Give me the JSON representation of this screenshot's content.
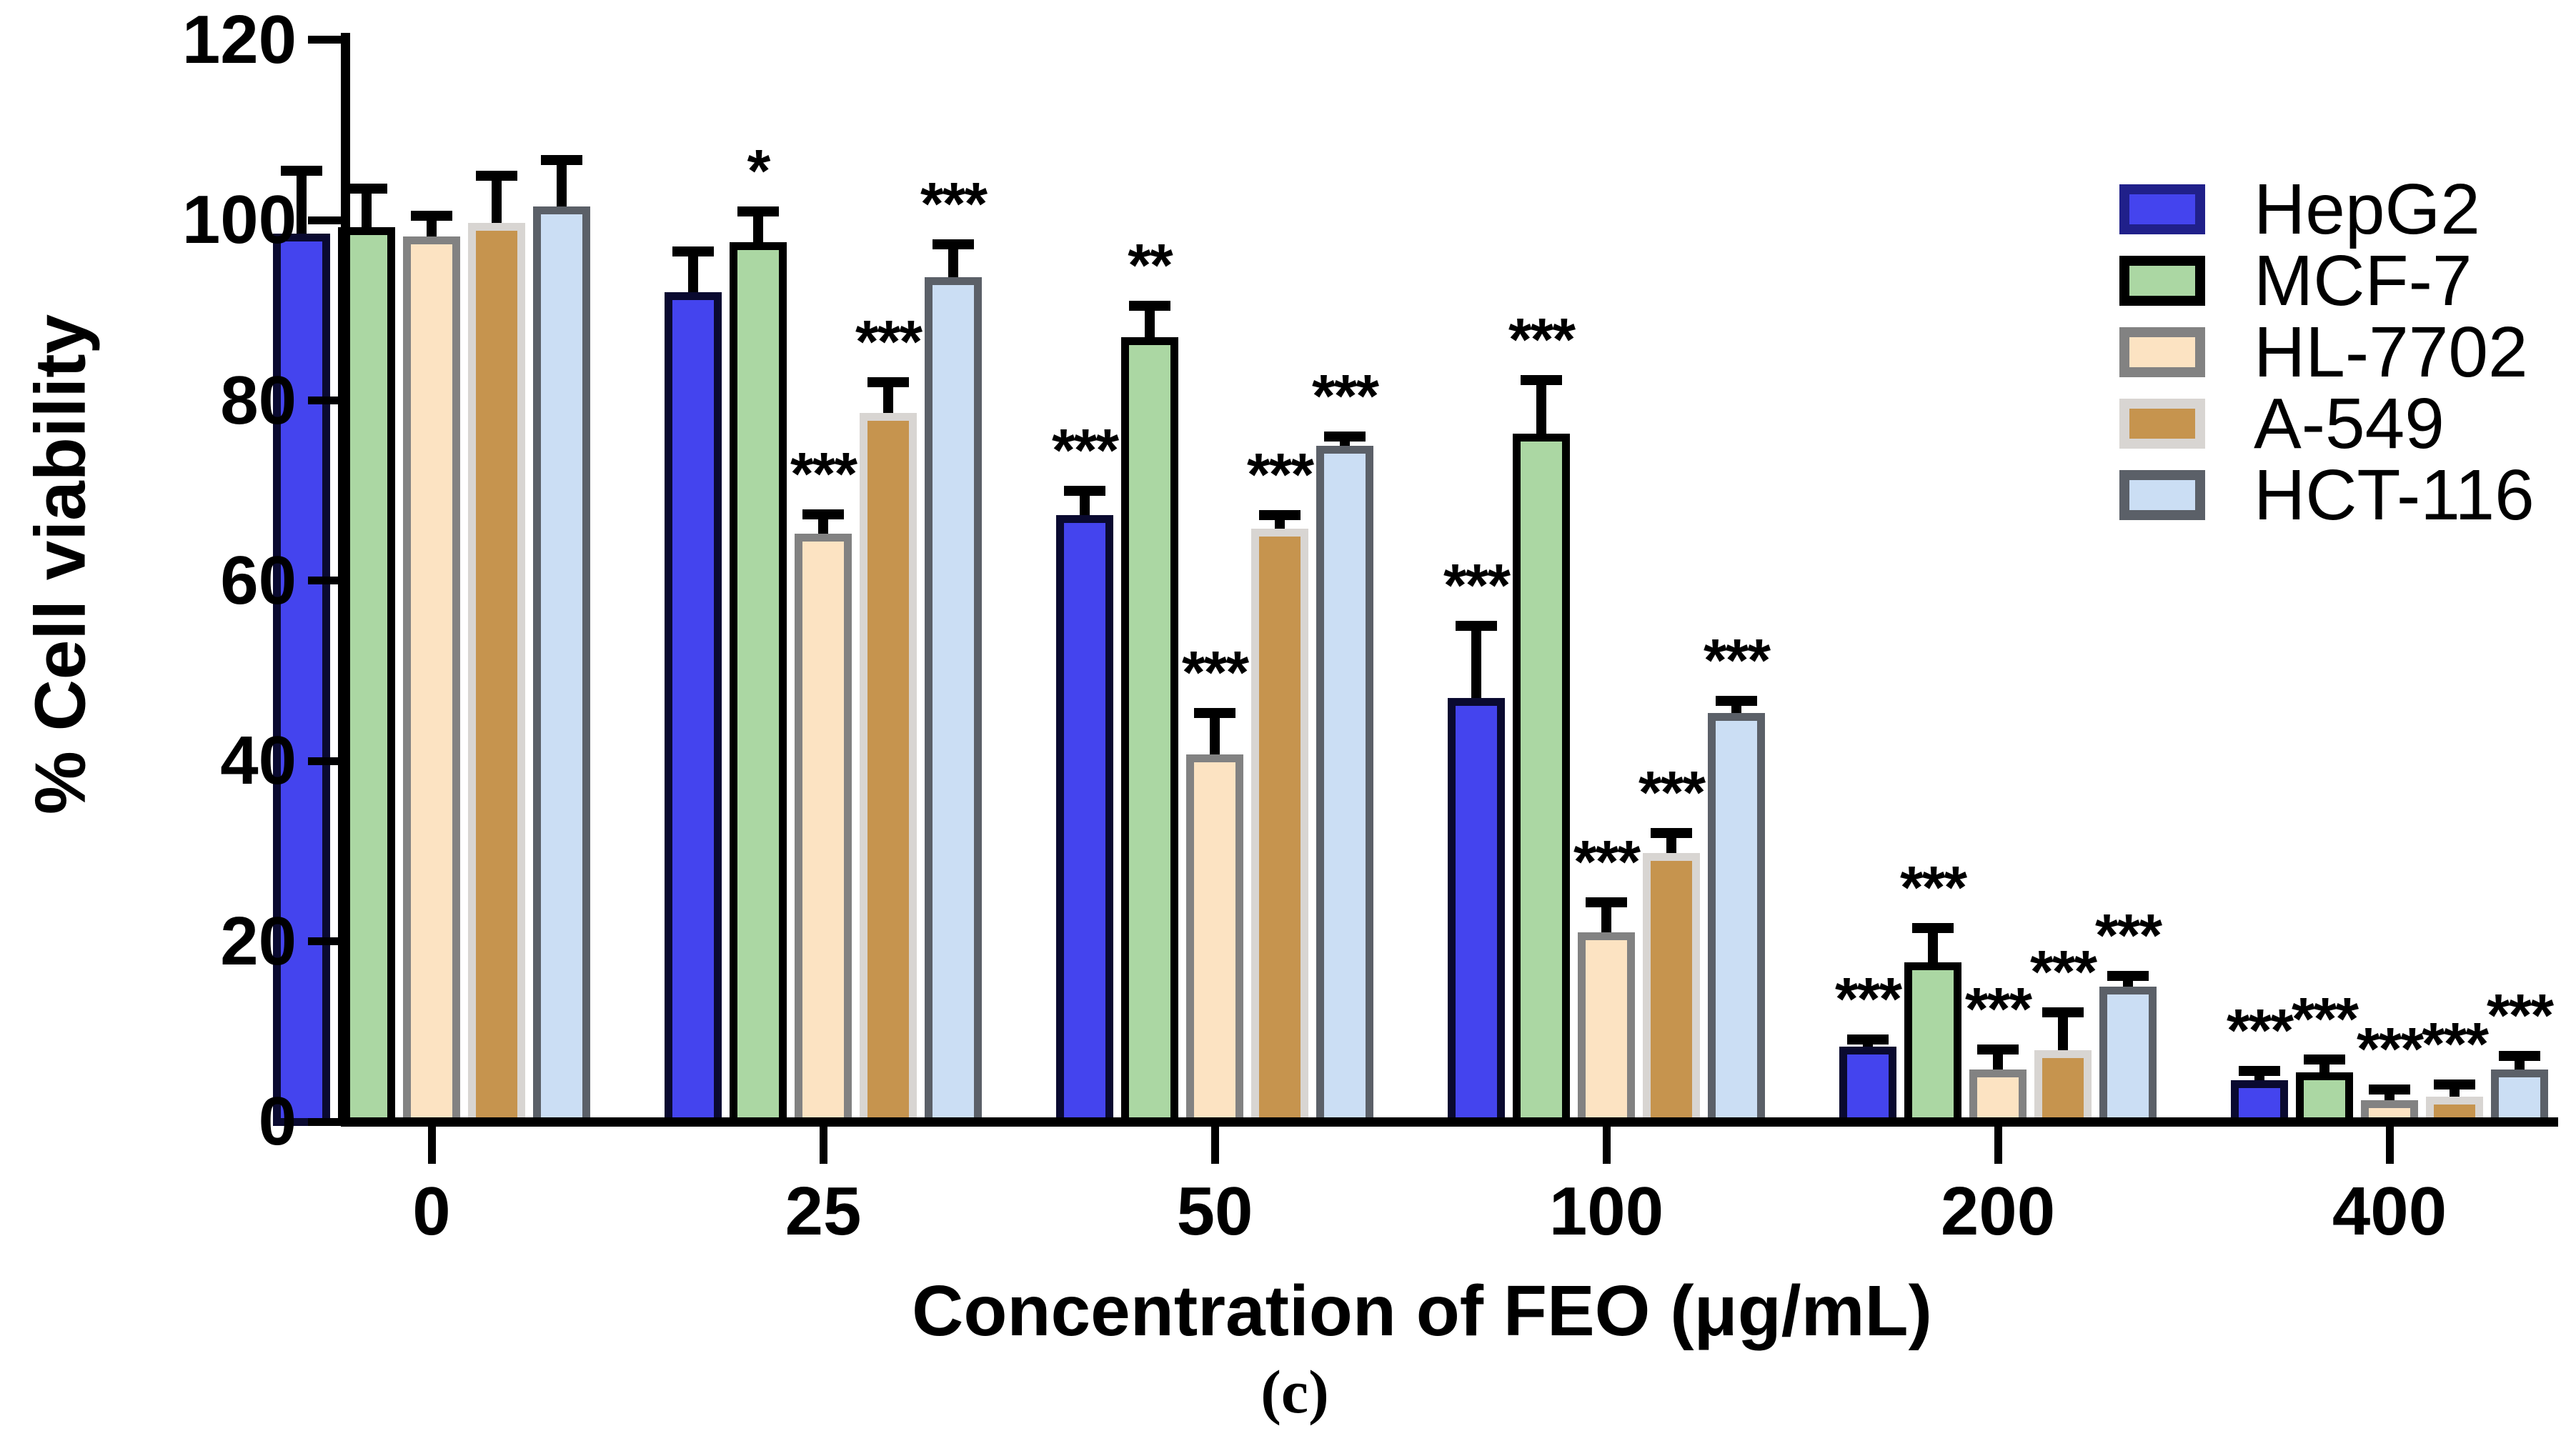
{
  "figure": {
    "caption": "(c)"
  },
  "chart_data": {
    "type": "bar",
    "title": "",
    "xlabel": "Concentration of FEO (μg/mL)",
    "ylabel": "% Cell viability",
    "ylim": [
      0,
      120
    ],
    "yticks": [
      0,
      20,
      40,
      60,
      80,
      100,
      120
    ],
    "categories": [
      "0",
      "25",
      "50",
      "100",
      "200",
      "400"
    ],
    "grid": false,
    "legend_position": "top-right",
    "error_bars": "upper, black caps",
    "axis_color": "#000000",
    "error_color": "#000000",
    "series": [
      {
        "name": "HepG2",
        "fill": "#4444ee",
        "border": "#0a0a30",
        "legend_border": "#20208a",
        "values": [
          98.5,
          92.0,
          67.3,
          47.0,
          8.3,
          4.6
        ],
        "errors": [
          7.0,
          4.5,
          2.7,
          8.0,
          0.8,
          1.0
        ],
        "sig": [
          "",
          "",
          "***",
          "***",
          "***",
          "***"
        ]
      },
      {
        "name": "MCF-7",
        "fill": "#abd7a3",
        "border": "#000000",
        "legend_border": "#000000",
        "values": [
          99.2,
          97.6,
          87.0,
          76.3,
          17.7,
          5.5
        ],
        "errors": [
          4.3,
          3.4,
          3.5,
          6.0,
          3.8,
          1.4
        ],
        "sig": [
          "",
          "*",
          "**",
          "***",
          "***",
          "***"
        ]
      },
      {
        "name": "HL-7702",
        "fill": "#fce3c2",
        "border": "#828282",
        "legend_border": "#828282",
        "values": [
          98.2,
          65.2,
          40.7,
          21.0,
          5.8,
          2.4
        ],
        "errors": [
          2.3,
          2.2,
          4.6,
          3.3,
          2.2,
          1.2
        ],
        "sig": [
          "",
          "***",
          "***",
          "***",
          "***",
          "***"
        ]
      },
      {
        "name": "A-549",
        "fill": "#c6944e",
        "border": "#d8d5d2",
        "legend_border": "#d8d5d2",
        "values": [
          99.7,
          78.6,
          65.8,
          29.8,
          7.9,
          2.8
        ],
        "errors": [
          5.2,
          3.4,
          1.5,
          2.2,
          4.2,
          1.3
        ],
        "sig": [
          "",
          "***",
          "***",
          "***",
          "***",
          "***"
        ]
      },
      {
        "name": "HCT-116",
        "fill": "#cbdef4",
        "border": "#5b6068",
        "legend_border": "#5b6068",
        "values": [
          101.5,
          93.7,
          75.0,
          45.3,
          15.0,
          5.8
        ],
        "errors": [
          5.2,
          3.6,
          1.0,
          1.4,
          1.2,
          1.5
        ],
        "sig": [
          "",
          "***",
          "***",
          "***",
          "***",
          "***"
        ]
      }
    ]
  }
}
